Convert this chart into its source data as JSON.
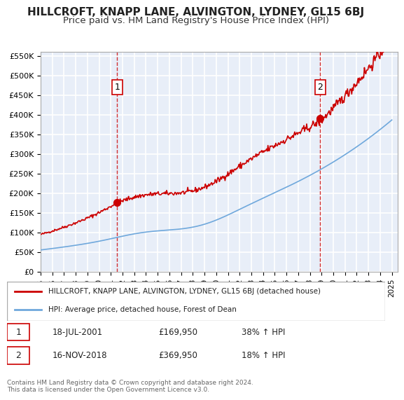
{
  "title": "HILLCROFT, KNAPP LANE, ALVINGTON, LYDNEY, GL15 6BJ",
  "subtitle": "Price paid vs. HM Land Registry's House Price Index (HPI)",
  "title_fontsize": 11,
  "subtitle_fontsize": 9.5,
  "bg_color": "#e8eef8",
  "plot_bg_color": "#e8eef8",
  "grid_color": "#ffffff",
  "sale1_date": "2001-07-18",
  "sale1_price": 169950,
  "sale1_label": "1",
  "sale2_date": "2018-11-16",
  "sale2_price": 369950,
  "sale2_label": "2",
  "legend_line1": "HILLCROFT, KNAPP LANE, ALVINGTON, LYDNEY, GL15 6BJ (detached house)",
  "legend_line2": "HPI: Average price, detached house, Forest of Dean",
  "annotation1": "1    18-JUL-2001         £169,950        38% ↑ HPI",
  "annotation2": "2    16-NOV-2018         £369,950        18% ↑ HPI",
  "footer": "Contains HM Land Registry data © Crown copyright and database right 2024.\nThis data is licensed under the Open Government Licence v3.0.",
  "hpi_color": "#6fa8dc",
  "price_color": "#cc0000",
  "marker_color": "#cc0000",
  "vline_color": "#cc0000",
  "xlabel_color": "#333333",
  "ylabel_color": "#333333"
}
